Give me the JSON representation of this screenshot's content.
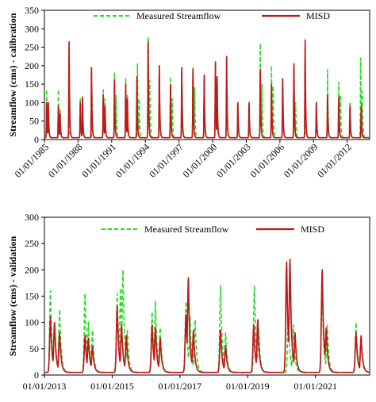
{
  "chart_data": [
    {
      "type": "line",
      "ylabel": "Streamflow (cms) - calibration",
      "ylim": [
        0,
        350
      ],
      "yticks": [
        0,
        50,
        100,
        150,
        200,
        250,
        300,
        350
      ],
      "xlim": [
        1985.0,
        2014.0
      ],
      "xticks": [
        {
          "x": 1985.0,
          "label": "01/01/1985"
        },
        {
          "x": 1988.0,
          "label": "01/01/1988"
        },
        {
          "x": 1991.0,
          "label": "01/01/1991"
        },
        {
          "x": 1994.0,
          "label": "01/01/1994"
        },
        {
          "x": 1997.0,
          "label": "01/01/1997"
        },
        {
          "x": 2000.0,
          "label": "01/01/2000"
        },
        {
          "x": 2003.0,
          "label": "01/01/2003"
        },
        {
          "x": 2006.0,
          "label": "01/01/2006"
        },
        {
          "x": 2009.0,
          "label": "01/01/2009"
        },
        {
          "x": 2012.0,
          "label": "01/01/2012"
        }
      ],
      "grid": false,
      "legend": "top",
      "baseflow": 5,
      "series": [
        {
          "name": "Measured Streamflow",
          "color": "#22dd22",
          "dash": "dashed",
          "peaks": [
            {
              "x": 1985.2,
              "y": 135
            },
            {
              "x": 1985.35,
              "y": 95
            },
            {
              "x": 1986.25,
              "y": 135
            },
            {
              "x": 1986.4,
              "y": 80
            },
            {
              "x": 1987.25,
              "y": 110
            },
            {
              "x": 1988.2,
              "y": 110
            },
            {
              "x": 1988.4,
              "y": 85
            },
            {
              "x": 1989.25,
              "y": 120
            },
            {
              "x": 1990.25,
              "y": 135
            },
            {
              "x": 1990.4,
              "y": 110
            },
            {
              "x": 1991.25,
              "y": 180
            },
            {
              "x": 1991.4,
              "y": 120
            },
            {
              "x": 1992.25,
              "y": 165
            },
            {
              "x": 1992.4,
              "y": 120
            },
            {
              "x": 1993.3,
              "y": 205
            },
            {
              "x": 1993.45,
              "y": 110
            },
            {
              "x": 1994.25,
              "y": 280
            },
            {
              "x": 1994.4,
              "y": 160
            },
            {
              "x": 1995.25,
              "y": 165
            },
            {
              "x": 1996.25,
              "y": 170
            },
            {
              "x": 1996.4,
              "y": 110
            },
            {
              "x": 1997.25,
              "y": 140
            },
            {
              "x": 1998.25,
              "y": 195
            },
            {
              "x": 1998.4,
              "y": 140
            },
            {
              "x": 1999.25,
              "y": 120
            },
            {
              "x": 2000.25,
              "y": 180
            },
            {
              "x": 2000.4,
              "y": 120
            },
            {
              "x": 2001.25,
              "y": 140
            },
            {
              "x": 2002.25,
              "y": 95
            },
            {
              "x": 2003.25,
              "y": 65
            },
            {
              "x": 2004.25,
              "y": 260
            },
            {
              "x": 2004.4,
              "y": 150
            },
            {
              "x": 2005.25,
              "y": 200
            },
            {
              "x": 2005.4,
              "y": 145
            },
            {
              "x": 2006.25,
              "y": 120
            },
            {
              "x": 2007.25,
              "y": 170
            },
            {
              "x": 2007.4,
              "y": 100
            },
            {
              "x": 2008.25,
              "y": 120
            },
            {
              "x": 2009.25,
              "y": 100
            },
            {
              "x": 2010.25,
              "y": 190
            },
            {
              "x": 2011.25,
              "y": 155
            },
            {
              "x": 2011.4,
              "y": 120
            },
            {
              "x": 2012.25,
              "y": 100
            },
            {
              "x": 2013.2,
              "y": 220
            },
            {
              "x": 2013.35,
              "y": 130
            }
          ]
        },
        {
          "name": "MISD",
          "color": "#c01818",
          "dash": "solid",
          "peaks": [
            {
              "x": 1985.2,
              "y": 100
            },
            {
              "x": 1985.35,
              "y": 100
            },
            {
              "x": 1986.25,
              "y": 90
            },
            {
              "x": 1986.4,
              "y": 70
            },
            {
              "x": 1987.2,
              "y": 265
            },
            {
              "x": 1988.2,
              "y": 100
            },
            {
              "x": 1988.4,
              "y": 115
            },
            {
              "x": 1989.2,
              "y": 195
            },
            {
              "x": 1990.25,
              "y": 120
            },
            {
              "x": 1990.4,
              "y": 90
            },
            {
              "x": 1991.25,
              "y": 160
            },
            {
              "x": 1992.25,
              "y": 150
            },
            {
              "x": 1992.4,
              "y": 110
            },
            {
              "x": 1993.25,
              "y": 170
            },
            {
              "x": 1994.25,
              "y": 265
            },
            {
              "x": 1995.25,
              "y": 200
            },
            {
              "x": 1996.25,
              "y": 150
            },
            {
              "x": 1997.25,
              "y": 195
            },
            {
              "x": 1998.25,
              "y": 190
            },
            {
              "x": 1999.25,
              "y": 175
            },
            {
              "x": 2000.25,
              "y": 210
            },
            {
              "x": 2000.4,
              "y": 170
            },
            {
              "x": 2001.25,
              "y": 225
            },
            {
              "x": 2002.25,
              "y": 100
            },
            {
              "x": 2003.25,
              "y": 100
            },
            {
              "x": 2004.25,
              "y": 190
            },
            {
              "x": 2005.25,
              "y": 150
            },
            {
              "x": 2006.25,
              "y": 165
            },
            {
              "x": 2007.25,
              "y": 205
            },
            {
              "x": 2008.25,
              "y": 270
            },
            {
              "x": 2009.25,
              "y": 100
            },
            {
              "x": 2010.25,
              "y": 120
            },
            {
              "x": 2011.25,
              "y": 115
            },
            {
              "x": 2012.25,
              "y": 90
            },
            {
              "x": 2013.25,
              "y": 90
            }
          ]
        }
      ]
    },
    {
      "type": "line",
      "ylabel": "Streamflow (cms) - validation",
      "ylim": [
        0,
        300
      ],
      "yticks": [
        0,
        50,
        100,
        150,
        200,
        250,
        300
      ],
      "xlim": [
        2013.0,
        2022.6
      ],
      "xticks": [
        {
          "x": 2013.0,
          "label": "01/01/2013"
        },
        {
          "x": 2015.0,
          "label": "01/01/2015"
        },
        {
          "x": 2017.0,
          "label": "01/01/2017"
        },
        {
          "x": 2019.0,
          "label": "01/01/2019"
        },
        {
          "x": 2021.0,
          "label": "01/01/2021"
        }
      ],
      "grid": false,
      "legend": "top",
      "baseflow": 5,
      "series": [
        {
          "name": "Measured Streamflow",
          "color": "#22dd22",
          "dash": "dashed",
          "peaks": [
            {
              "x": 2013.18,
              "y": 160
            },
            {
              "x": 2013.3,
              "y": 95
            },
            {
              "x": 2013.45,
              "y": 125
            },
            {
              "x": 2014.2,
              "y": 155
            },
            {
              "x": 2014.3,
              "y": 100
            },
            {
              "x": 2014.42,
              "y": 85
            },
            {
              "x": 2015.15,
              "y": 155
            },
            {
              "x": 2015.25,
              "y": 165
            },
            {
              "x": 2015.32,
              "y": 200
            },
            {
              "x": 2015.45,
              "y": 85
            },
            {
              "x": 2016.18,
              "y": 120
            },
            {
              "x": 2016.28,
              "y": 140
            },
            {
              "x": 2016.42,
              "y": 90
            },
            {
              "x": 2017.18,
              "y": 140
            },
            {
              "x": 2017.3,
              "y": 110
            },
            {
              "x": 2017.45,
              "y": 105
            },
            {
              "x": 2018.2,
              "y": 170
            },
            {
              "x": 2018.35,
              "y": 80
            },
            {
              "x": 2019.2,
              "y": 170
            },
            {
              "x": 2019.32,
              "y": 90
            },
            {
              "x": 2020.2,
              "y": 110
            },
            {
              "x": 2020.35,
              "y": 95
            },
            {
              "x": 2021.2,
              "y": 160
            },
            {
              "x": 2021.35,
              "y": 95
            },
            {
              "x": 2022.2,
              "y": 100
            },
            {
              "x": 2022.35,
              "y": 60
            }
          ]
        },
        {
          "name": "MISD",
          "color": "#c01818",
          "dash": "solid",
          "peaks": [
            {
              "x": 2013.18,
              "y": 110
            },
            {
              "x": 2013.3,
              "y": 100
            },
            {
              "x": 2013.45,
              "y": 80
            },
            {
              "x": 2014.2,
              "y": 75
            },
            {
              "x": 2014.3,
              "y": 70
            },
            {
              "x": 2014.42,
              "y": 55
            },
            {
              "x": 2015.15,
              "y": 130
            },
            {
              "x": 2015.28,
              "y": 95
            },
            {
              "x": 2015.42,
              "y": 75
            },
            {
              "x": 2016.18,
              "y": 95
            },
            {
              "x": 2016.28,
              "y": 90
            },
            {
              "x": 2016.42,
              "y": 70
            },
            {
              "x": 2017.18,
              "y": 115
            },
            {
              "x": 2017.25,
              "y": 185
            },
            {
              "x": 2017.4,
              "y": 85
            },
            {
              "x": 2018.2,
              "y": 85
            },
            {
              "x": 2018.35,
              "y": 55
            },
            {
              "x": 2019.18,
              "y": 95
            },
            {
              "x": 2019.3,
              "y": 105
            },
            {
              "x": 2020.15,
              "y": 215
            },
            {
              "x": 2020.25,
              "y": 220
            },
            {
              "x": 2020.4,
              "y": 80
            },
            {
              "x": 2021.2,
              "y": 200
            },
            {
              "x": 2021.32,
              "y": 90
            },
            {
              "x": 2022.2,
              "y": 80
            },
            {
              "x": 2022.35,
              "y": 75
            }
          ]
        }
      ]
    }
  ]
}
